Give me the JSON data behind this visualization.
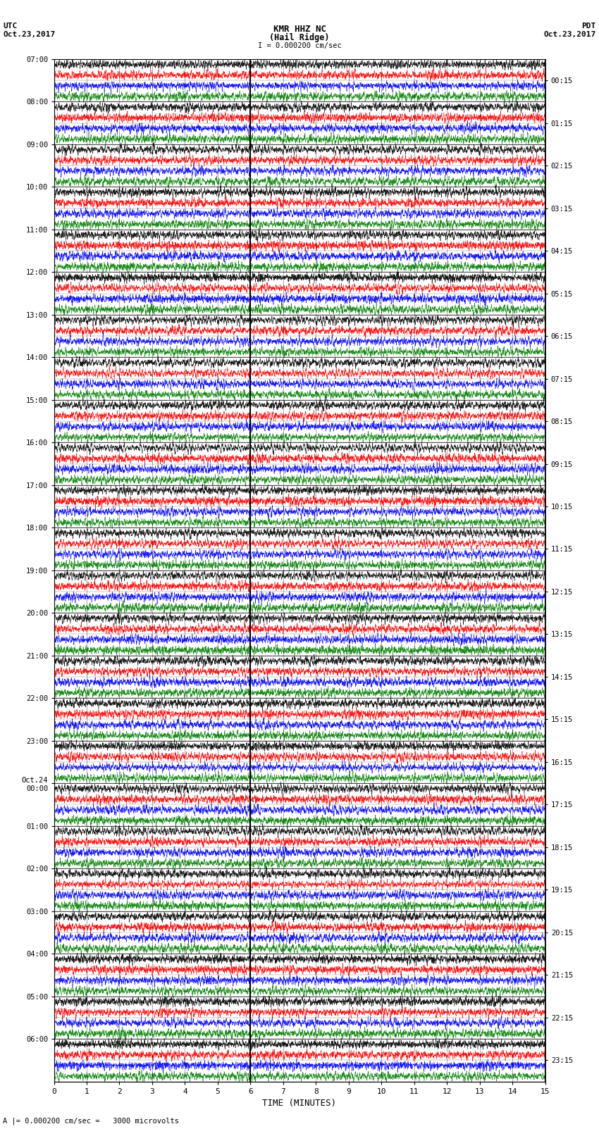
{
  "title_line1": "KMR HHZ NC",
  "title_line2": "(Hail Ridge)",
  "scale_label": "I = 0.000200 cm/sec",
  "utc_label": "UTC",
  "utc_date": "Oct.23,2017",
  "pdt_label": "PDT",
  "pdt_date": "Oct.23,2017",
  "bottom_label": "A |= 0.000200 cm/sec =   3000 microvolts",
  "xlabel": "TIME (MINUTES)",
  "left_times": [
    "07:00",
    "08:00",
    "09:00",
    "10:00",
    "11:00",
    "12:00",
    "13:00",
    "14:00",
    "15:00",
    "16:00",
    "17:00",
    "18:00",
    "19:00",
    "20:00",
    "21:00",
    "22:00",
    "23:00",
    "Oct.24\n00:00",
    "01:00",
    "02:00",
    "03:00",
    "04:00",
    "05:00",
    "06:00"
  ],
  "right_times": [
    "00:15",
    "01:15",
    "02:15",
    "03:15",
    "04:15",
    "05:15",
    "06:15",
    "07:15",
    "08:15",
    "09:15",
    "10:15",
    "11:15",
    "12:15",
    "13:15",
    "14:15",
    "15:15",
    "16:15",
    "17:15",
    "18:15",
    "19:15",
    "20:15",
    "21:15",
    "22:15",
    "23:15"
  ],
  "n_rows": 96,
  "n_cols": 3000,
  "x_ticks": [
    0,
    1,
    2,
    3,
    4,
    5,
    6,
    7,
    8,
    9,
    10,
    11,
    12,
    13,
    14,
    15
  ],
  "row_colors": [
    "black",
    "red",
    "blue",
    "green"
  ],
  "bg_color": "white",
  "vertical_line_x": 6.0,
  "fig_width": 8.5,
  "fig_height": 16.13
}
